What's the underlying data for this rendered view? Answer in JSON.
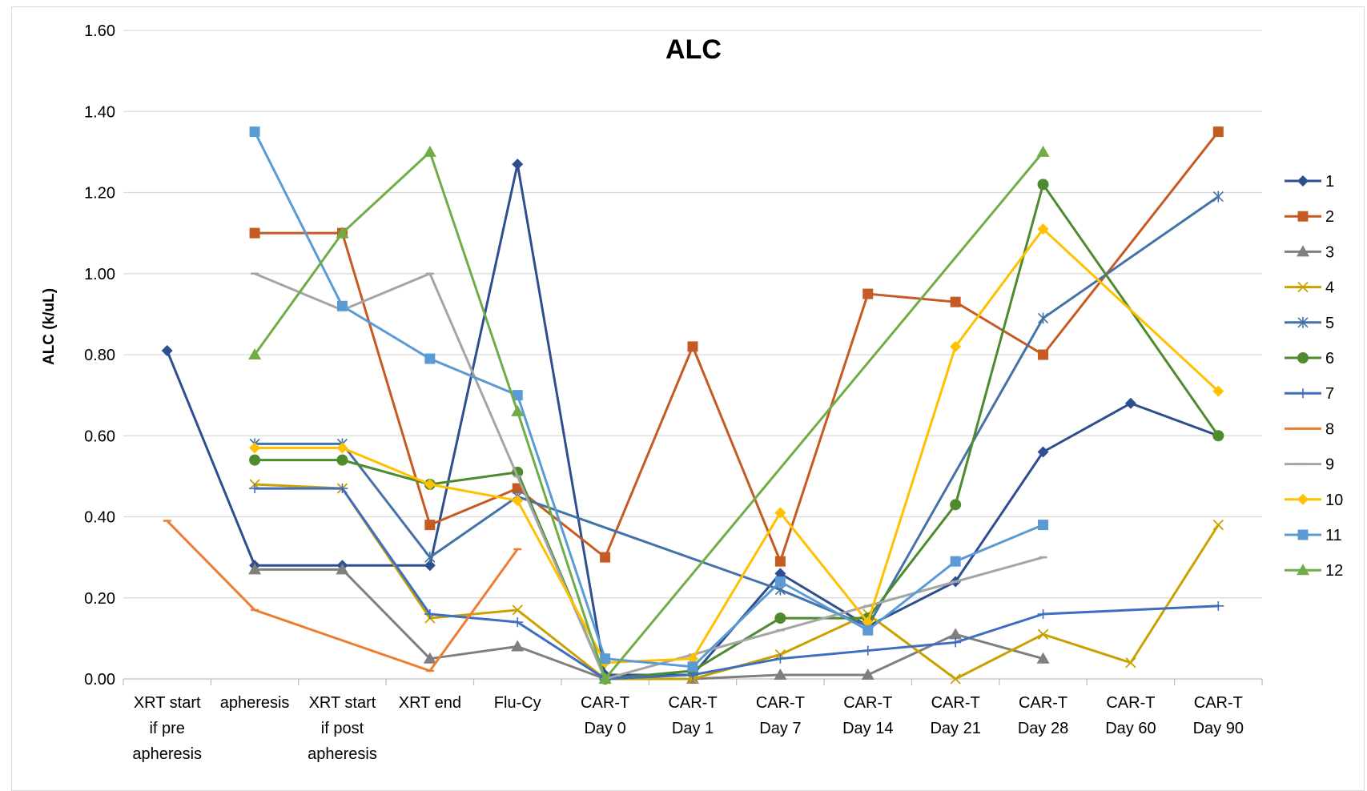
{
  "chart_data": {
    "type": "line",
    "title": "ALC",
    "xlabel": "",
    "ylabel": "ALC (k/uL)",
    "ylim": [
      0,
      1.6
    ],
    "yticks": [
      "0.00",
      "0.20",
      "0.40",
      "0.60",
      "0.80",
      "1.00",
      "1.20",
      "1.40",
      "1.60"
    ],
    "yticks_values": [
      0,
      0.2,
      0.4,
      0.6,
      0.8,
      1.0,
      1.2,
      1.4,
      1.6
    ],
    "grid": true,
    "legend_position": "right",
    "categories": [
      [
        "XRT start",
        "if pre",
        "apheresis"
      ],
      [
        "apheresis"
      ],
      [
        "XRT start",
        "if post",
        "apheresis"
      ],
      [
        "XRT end"
      ],
      [
        "Flu-Cy"
      ],
      [
        "CAR-T",
        "Day 0"
      ],
      [
        "CAR-T",
        "Day 1"
      ],
      [
        "CAR-T",
        "Day 7"
      ],
      [
        "CAR-T",
        "Day 14"
      ],
      [
        "CAR-T",
        "Day 21"
      ],
      [
        "CAR-T",
        "Day 28"
      ],
      [
        "CAR-T",
        "Day 60"
      ],
      [
        "CAR-T",
        "Day 90"
      ]
    ],
    "series": [
      {
        "name": "1",
        "color": "#2f4e8f",
        "marker": "diamond",
        "values": [
          0.81,
          0.28,
          0.28,
          0.28,
          1.27,
          0.01,
          0.01,
          0.26,
          0.13,
          0.24,
          0.56,
          0.68,
          0.6
        ]
      },
      {
        "name": "2",
        "color": "#c55a22",
        "marker": "square",
        "values": [
          null,
          1.1,
          1.1,
          0.38,
          0.47,
          0.3,
          0.82,
          0.29,
          0.95,
          0.93,
          0.8,
          null,
          1.35
        ]
      },
      {
        "name": "3",
        "color": "#7f7f7f",
        "marker": "triangle",
        "values": [
          null,
          0.27,
          0.27,
          0.05,
          0.08,
          0.0,
          0.0,
          0.01,
          0.01,
          0.11,
          0.05,
          null,
          null
        ]
      },
      {
        "name": "4",
        "color": "#c9a100",
        "marker": "x",
        "values": [
          null,
          0.48,
          0.47,
          0.15,
          0.17,
          0.0,
          0.0,
          0.06,
          0.16,
          0.0,
          0.11,
          0.04,
          0.38
        ]
      },
      {
        "name": "5",
        "color": "#4472a8",
        "marker": "star",
        "values": [
          null,
          0.58,
          0.58,
          0.3,
          0.45,
          null,
          null,
          0.22,
          0.13,
          null,
          0.89,
          null,
          1.19
        ]
      },
      {
        "name": "6",
        "color": "#4e8a2e",
        "marker": "circle",
        "values": [
          null,
          0.54,
          0.54,
          0.48,
          0.51,
          0.0,
          0.02,
          0.15,
          0.15,
          0.43,
          1.22,
          null,
          0.6
        ]
      },
      {
        "name": "7",
        "color": "#3e6ec0",
        "marker": "plus",
        "values": [
          null,
          0.47,
          0.47,
          0.16,
          0.14,
          0.0,
          0.01,
          0.05,
          0.07,
          0.09,
          0.16,
          null,
          0.18
        ]
      },
      {
        "name": "8",
        "color": "#ed7d31",
        "marker": "dash",
        "values": [
          0.39,
          0.17,
          null,
          0.02,
          0.32,
          null,
          null,
          null,
          null,
          null,
          null,
          null,
          null
        ]
      },
      {
        "name": "9",
        "color": "#a5a5a5",
        "marker": "dash",
        "values": [
          null,
          1.0,
          0.91,
          1.0,
          0.5,
          0.0,
          0.06,
          0.12,
          0.18,
          0.24,
          0.3,
          null,
          null
        ]
      },
      {
        "name": "10",
        "color": "#ffc000",
        "marker": "diamond",
        "values": [
          null,
          0.57,
          0.57,
          0.48,
          0.44,
          0.04,
          0.05,
          0.41,
          0.14,
          0.82,
          1.11,
          null,
          0.71
        ]
      },
      {
        "name": "11",
        "color": "#5b9bd5",
        "marker": "square",
        "values": [
          null,
          1.35,
          0.92,
          0.79,
          0.7,
          0.05,
          0.03,
          0.24,
          0.12,
          0.29,
          0.38,
          null,
          null
        ]
      },
      {
        "name": "12",
        "color": "#70ad47",
        "marker": "triangle",
        "values": [
          null,
          0.8,
          1.1,
          1.3,
          0.66,
          0.0,
          null,
          null,
          null,
          null,
          1.3,
          null,
          null
        ]
      }
    ]
  }
}
